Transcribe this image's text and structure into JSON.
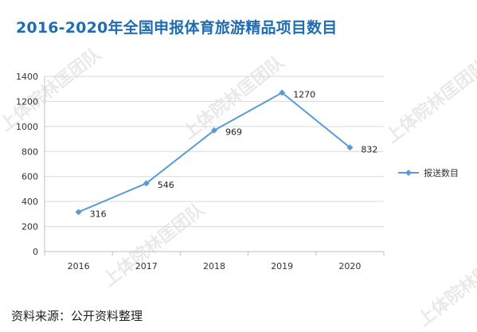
{
  "title": "2016-2020年全国申报体育旅游精品项目数目",
  "source": "资料来源：公开资料整理",
  "watermark": "上体院林匡团队",
  "colors": {
    "title": "#1f6cb0",
    "line": "#5b9bd5",
    "grid": "#d9d9d9",
    "axis": "#bfbfbf"
  },
  "chart_data": {
    "type": "line",
    "categories": [
      "2016",
      "2017",
      "2018",
      "2019",
      "2020"
    ],
    "series": [
      {
        "name": "报送数目",
        "values": [
          316,
          546,
          969,
          1270,
          832
        ]
      }
    ],
    "data_labels": [
      "316",
      "546",
      "969",
      "1270",
      "832"
    ],
    "ylim": [
      0,
      1400
    ],
    "yticks": [
      0,
      200,
      400,
      600,
      800,
      1000,
      1200,
      1400
    ],
    "grid": true,
    "legend": "right"
  }
}
